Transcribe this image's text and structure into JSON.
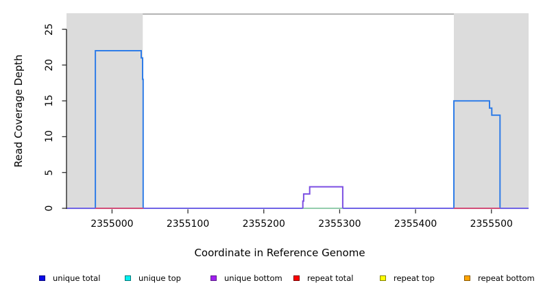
{
  "chart_data": {
    "type": "line",
    "title": "",
    "xlabel": "Coordinate in Reference Genome",
    "ylabel": "Read Coverage Depth",
    "xlim": [
      2354940,
      2355549
    ],
    "ylim": [
      0,
      27.12
    ],
    "x_ticks": [
      2355000,
      2355100,
      2355200,
      2355300,
      2355400,
      2355500
    ],
    "y_ticks": [
      0,
      5,
      10,
      15,
      20,
      25
    ],
    "grid": false,
    "legend_position": "bottom",
    "colors": {
      "plot_background": "#ffffff",
      "shaded_region": "#dcdcdc",
      "top_border": "#868686",
      "axis": "#2b2b2b",
      "text": "#000000"
    },
    "shaded_regions": [
      {
        "x0": 2354940,
        "x1": 2355040.5
      },
      {
        "x0": 2355450.5,
        "x1": 2355549
      }
    ],
    "layers": [
      {
        "name": "unique-total",
        "color": "#2e7ce8",
        "width": 2,
        "points": [
          [
            2354940,
            0
          ],
          [
            2354978,
            0
          ],
          [
            2354978,
            22
          ],
          [
            2355038.5,
            22
          ],
          [
            2355038.5,
            21
          ],
          [
            2355040.3,
            21
          ],
          [
            2355040.3,
            18
          ],
          [
            2355041,
            18
          ],
          [
            2355041,
            0
          ],
          [
            2355450.5,
            0
          ],
          [
            2355450.5,
            15
          ],
          [
            2355497.5,
            15
          ],
          [
            2355497.5,
            14
          ],
          [
            2355500.5,
            14
          ],
          [
            2355500.5,
            13
          ],
          [
            2355511.3,
            13
          ],
          [
            2355511.3,
            0
          ],
          [
            2355549,
            0
          ]
        ]
      },
      {
        "name": "unique-overlap-baseline",
        "color": "#6f63e6",
        "width": 2,
        "points": [
          [
            2354940,
            0
          ],
          [
            2355549,
            0
          ]
        ]
      },
      {
        "name": "repeat-total-left",
        "color": "#e04a68",
        "width": 1.7,
        "points": [
          [
            2354978,
            0
          ],
          [
            2355041,
            0
          ]
        ]
      },
      {
        "name": "repeat-total-right",
        "color": "#e04a68",
        "width": 1.7,
        "points": [
          [
            2355450.5,
            0
          ],
          [
            2355511.3,
            0
          ]
        ]
      },
      {
        "name": "unique-top-bump-baseline",
        "color": "#98dca4",
        "width": 1.7,
        "points": [
          [
            2355251.5,
            0
          ],
          [
            2355304,
            0
          ]
        ]
      },
      {
        "name": "unique-bottom-bump",
        "color": "#7b4ee2",
        "width": 2,
        "points": [
          [
            2355251.5,
            0
          ],
          [
            2355251.5,
            1
          ],
          [
            2355252.5,
            1
          ],
          [
            2355252.5,
            2
          ],
          [
            2355260.5,
            2
          ],
          [
            2355260.5,
            3
          ],
          [
            2355304,
            3
          ],
          [
            2355304,
            0
          ]
        ]
      }
    ],
    "legend": [
      {
        "label": "unique total",
        "fill": "#0a0ae8",
        "border": "#000080"
      },
      {
        "label": "unique top",
        "fill": "#00f0f0",
        "border": "#007878"
      },
      {
        "label": "unique bottom",
        "fill": "#a020f0",
        "border": "#5c1a8a"
      },
      {
        "label": "repeat total",
        "fill": "#ff0000",
        "border": "#780000"
      },
      {
        "label": "repeat top",
        "fill": "#ffff00",
        "border": "#828200"
      },
      {
        "label": "repeat bottom",
        "fill": "#ffa500",
        "border": "#8a5800"
      }
    ]
  }
}
